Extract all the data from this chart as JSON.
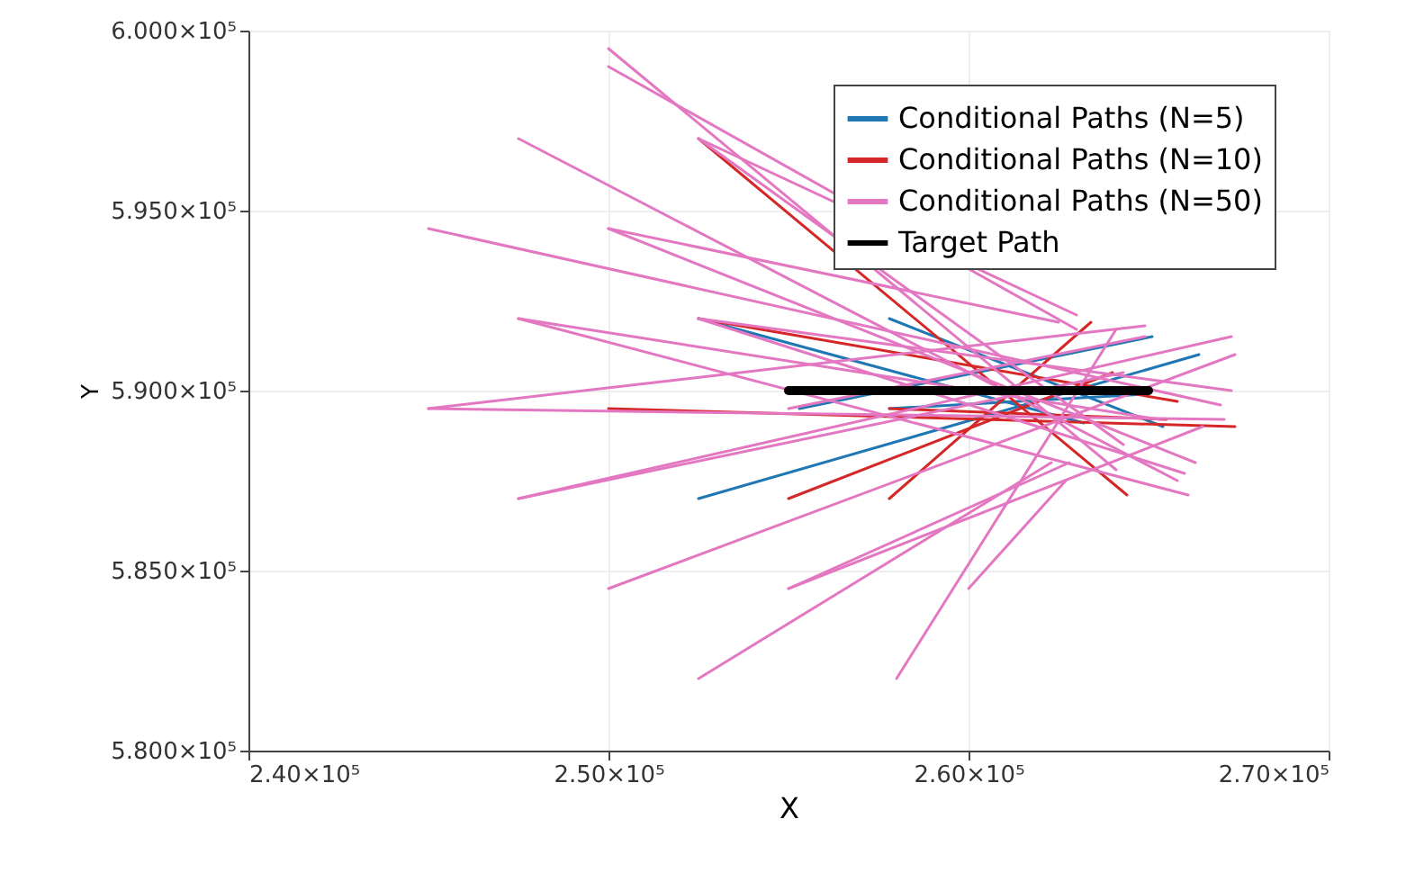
{
  "chart_data": {
    "type": "line",
    "xlabel": "X",
    "ylabel": "Y",
    "xlim": [
      240000,
      270000
    ],
    "ylim": [
      580000,
      600000
    ],
    "xticks": [
      {
        "value": 240000,
        "label": "2.40×10⁵"
      },
      {
        "value": 250000,
        "label": "2.50×10⁵"
      },
      {
        "value": 260000,
        "label": "2.60×10⁵"
      },
      {
        "value": 270000,
        "label": "2.70×10⁵"
      }
    ],
    "yticks": [
      {
        "value": 580000,
        "label": "5.800×10⁵"
      },
      {
        "value": 585000,
        "label": "5.850×10⁵"
      },
      {
        "value": 590000,
        "label": "5.900×10⁵"
      },
      {
        "value": 595000,
        "label": "5.950×10⁵"
      },
      {
        "value": 600000,
        "label": "6.000×10⁵"
      }
    ],
    "grid": true,
    "legend": "top right",
    "line_style": "solid",
    "series": [
      {
        "name": "Conditional Paths (N=5)",
        "color": "#1f77b4",
        "x": [
          252500,
          263200,
          null,
          257800,
          265400,
          null,
          255300,
          265100,
          null,
          252500,
          266400,
          null,
          257800,
          264900
        ],
        "values": [
          592000,
          589100,
          null,
          592000,
          589000,
          null,
          589500,
          591500,
          null,
          587000,
          591000,
          null,
          589500,
          589900
        ]
      },
      {
        "name": "Conditional Paths (N=10)",
        "color": "#d62728",
        "x": [
          252500,
          264400,
          null,
          250000,
          267400,
          null,
          257800,
          263400,
          null,
          252500,
          265800,
          null,
          257800,
          265500,
          null,
          255000,
          264000
        ],
        "values": [
          597000,
          587100,
          null,
          589500,
          589000,
          null,
          587000,
          591900,
          null,
          592000,
          589700,
          null,
          589500,
          589200,
          null,
          587000,
          590500
        ]
      },
      {
        "name": "Conditional Paths (N=50)",
        "color": "#e377c2",
        "x": [
          250000,
          264100,
          null,
          247500,
          265800,
          null,
          252500,
          264300,
          null,
          252500,
          263000,
          null,
          245000,
          267000,
          null,
          250000,
          266300,
          null,
          250000,
          262500,
          null,
          247500,
          266100,
          null,
          247500,
          265300,
          null,
          245000,
          267100,
          null,
          245000,
          264900,
          null,
          247500,
          267300,
          null,
          247500,
          264300,
          null,
          250000,
          267400,
          null,
          255000,
          266500,
          null,
          255000,
          262800,
          null,
          252500,
          262300,
          null,
          258000,
          264100,
          null,
          260000,
          262700,
          null,
          255000,
          264900,
          null,
          252500,
          267300,
          null,
          252500,
          266000,
          null,
          250000,
          263000
        ],
        "values": [
          599500,
          587800,
          null,
          597000,
          587500,
          null,
          597000,
          588500,
          null,
          597000,
          592100,
          null,
          594500,
          589600,
          null,
          594500,
          588000,
          null,
          594500,
          591900,
          null,
          592000,
          587100,
          null,
          592000,
          589200,
          null,
          589500,
          589200,
          null,
          589500,
          591800,
          null,
          587000,
          591500,
          null,
          587000,
          590500,
          null,
          584500,
          591000,
          null,
          584500,
          589000,
          null,
          584500,
          588000,
          null,
          582000,
          588000,
          null,
          582000,
          591700,
          null,
          584500,
          587500,
          null,
          589500,
          591500,
          null,
          592000,
          590000,
          null,
          592000,
          587700,
          null,
          599000,
          591700
        ]
      },
      {
        "name": "Target Path",
        "color": "#000000",
        "x": [
          255000,
          265000
        ],
        "values": [
          590000,
          590000
        ]
      }
    ]
  }
}
